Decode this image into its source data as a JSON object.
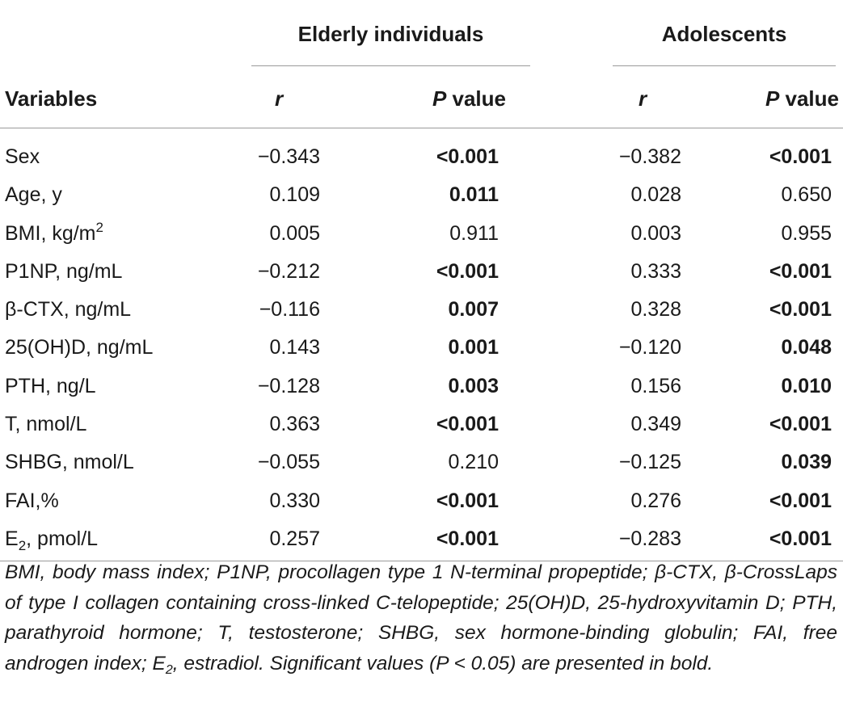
{
  "table": {
    "group_headers": {
      "elderly": "Elderly individuals",
      "adolescents": "Adolescents"
    },
    "column_headers": {
      "variables": "Variables",
      "r": "r",
      "p_italic": "P",
      "p_rest": " value"
    },
    "rows": [
      {
        "variable": "Sex",
        "var_suffix": "",
        "var_suffix_type": "",
        "var_tail": "",
        "elderly_r": "−0.343",
        "elderly_p": "<0.001",
        "elderly_p_bold": true,
        "adol_r": "−0.382",
        "adol_p": "<0.001",
        "adol_p_bold": true
      },
      {
        "variable": "Age, y",
        "var_suffix": "",
        "var_suffix_type": "",
        "var_tail": "",
        "elderly_r": "0.109",
        "elderly_p": "0.011",
        "elderly_p_bold": true,
        "adol_r": "0.028",
        "adol_p": "0.650",
        "adol_p_bold": false
      },
      {
        "variable": "BMI, kg/m",
        "var_suffix": "2",
        "var_suffix_type": "sup",
        "var_tail": "",
        "elderly_r": "0.005",
        "elderly_p": "0.911",
        "elderly_p_bold": false,
        "adol_r": "0.003",
        "adol_p": "0.955",
        "adol_p_bold": false
      },
      {
        "variable": "P1NP, ng/mL",
        "var_suffix": "",
        "var_suffix_type": "",
        "var_tail": "",
        "elderly_r": "−0.212",
        "elderly_p": "<0.001",
        "elderly_p_bold": true,
        "adol_r": "0.333",
        "adol_p": "<0.001",
        "adol_p_bold": true
      },
      {
        "variable": "β-CTX, ng/mL",
        "var_suffix": "",
        "var_suffix_type": "",
        "var_tail": "",
        "elderly_r": "−0.116",
        "elderly_p": "0.007",
        "elderly_p_bold": true,
        "adol_r": "0.328",
        "adol_p": "<0.001",
        "adol_p_bold": true
      },
      {
        "variable": "25(OH)D, ng/mL",
        "var_suffix": "",
        "var_suffix_type": "",
        "var_tail": "",
        "elderly_r": "0.143",
        "elderly_p": "0.001",
        "elderly_p_bold": true,
        "adol_r": "−0.120",
        "adol_p": "0.048",
        "adol_p_bold": true
      },
      {
        "variable": "PTH, ng/L",
        "var_suffix": "",
        "var_suffix_type": "",
        "var_tail": "",
        "elderly_r": "−0.128",
        "elderly_p": "0.003",
        "elderly_p_bold": true,
        "adol_r": "0.156",
        "adol_p": "0.010",
        "adol_p_bold": true
      },
      {
        "variable": "T, nmol/L",
        "var_suffix": "",
        "var_suffix_type": "",
        "var_tail": "",
        "elderly_r": "0.363",
        "elderly_p": "<0.001",
        "elderly_p_bold": true,
        "adol_r": "0.349",
        "adol_p": "<0.001",
        "adol_p_bold": true
      },
      {
        "variable": "SHBG, nmol/L",
        "var_suffix": "",
        "var_suffix_type": "",
        "var_tail": "",
        "elderly_r": "−0.055",
        "elderly_p": "0.210",
        "elderly_p_bold": false,
        "adol_r": "−0.125",
        "adol_p": "0.039",
        "adol_p_bold": true
      },
      {
        "variable": "FAI,%",
        "var_suffix": "",
        "var_suffix_type": "",
        "var_tail": "",
        "elderly_r": "0.330",
        "elderly_p": "<0.001",
        "elderly_p_bold": true,
        "adol_r": "0.276",
        "adol_p": "<0.001",
        "adol_p_bold": true
      },
      {
        "variable": "E",
        "var_suffix": "2",
        "var_suffix_type": "sub",
        "var_tail": ", pmol/L",
        "elderly_r": "0.257",
        "elderly_p": "<0.001",
        "elderly_p_bold": true,
        "adol_r": "−0.283",
        "adol_p": "<0.001",
        "adol_p_bold": true
      }
    ],
    "footnote": {
      "part1": "BMI, body mass index; P1NP, procollagen type 1 N-terminal propeptide; β-CTX, β-CrossLaps of type I collagen containing cross-linked C-telopeptide; 25(OH)D, 25-hydroxyvitamin D; PTH, parathyroid hormone; T, testosterone; SHBG, sex hormone-binding globulin; FAI, free androgen index; E",
      "sub": "2",
      "part2": ", estradiol. Significant values (P < 0.05) are presented in bold."
    }
  }
}
